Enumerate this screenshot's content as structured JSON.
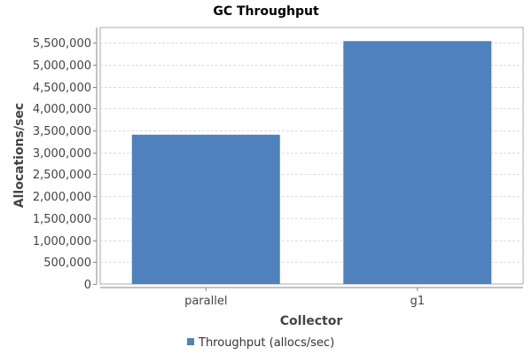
{
  "chart_data": {
    "type": "bar",
    "title": "GC Throughput",
    "xlabel": "Collector",
    "ylabel": "Allocations/sec",
    "categories": [
      "parallel",
      "g1"
    ],
    "series": [
      {
        "name": "Throughput (allocs/sec)",
        "values": [
          3405000,
          5540000
        ],
        "color": "#4e81bd"
      }
    ],
    "ylim": [
      0,
      5850000
    ],
    "yticks": [
      0,
      500000,
      1000000,
      1500000,
      2000000,
      2500000,
      3000000,
      3500000,
      4000000,
      4500000,
      5000000,
      5500000
    ],
    "ytick_labels": [
      "0",
      "500,000",
      "1,000,000",
      "1,500,000",
      "2,000,000",
      "2,500,000",
      "3,000,000",
      "3,500,000",
      "4,000,000",
      "4,500,000",
      "5,000,000",
      "5,500,000"
    ],
    "grid": true,
    "legend": "bottom-center"
  }
}
